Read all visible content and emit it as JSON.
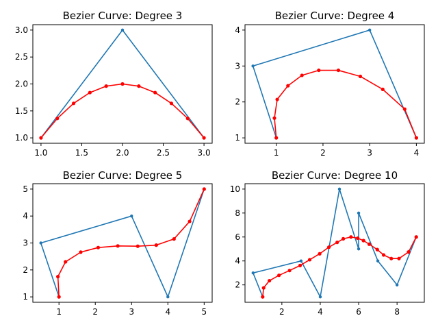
{
  "colors": {
    "control": "#1f77b4",
    "curve": "#ff0000"
  },
  "chart_data": [
    {
      "type": "line",
      "title": "Bezier Curve: Degree 3",
      "xlabel": "",
      "ylabel": "",
      "xlim": [
        0.9,
        3.1
      ],
      "ylim": [
        0.9,
        3.1
      ],
      "xticks": [
        1.0,
        1.5,
        2.0,
        2.5,
        3.0
      ],
      "xticklabels": [
        "1.0",
        "1.5",
        "2.0",
        "2.5",
        "3.0"
      ],
      "yticks": [
        1.0,
        1.5,
        2.0,
        2.5,
        3.0
      ],
      "yticklabels": [
        "1.0",
        "1.5",
        "2.0",
        "2.5",
        "3.0"
      ],
      "grid": false,
      "series": [
        {
          "role": "control",
          "color": "#1f77b4",
          "x": [
            1,
            2,
            3
          ],
          "y": [
            1,
            3,
            1
          ]
        },
        {
          "role": "curve",
          "color": "#ff0000",
          "x": [
            1.0,
            1.2,
            1.4,
            1.6,
            1.8,
            2.0,
            2.2,
            2.4,
            2.6,
            2.8,
            3.0
          ],
          "y": [
            1.0,
            1.36,
            1.64,
            1.84,
            1.96,
            2.0,
            1.96,
            1.84,
            1.64,
            1.36,
            1.0
          ]
        }
      ]
    },
    {
      "type": "line",
      "title": "Bezier Curve: Degree 4",
      "xlabel": "",
      "ylabel": "",
      "xlim": [
        0.33,
        4.17
      ],
      "ylim": [
        0.85,
        4.15
      ],
      "xticks": [
        1,
        2,
        3,
        4
      ],
      "xticklabels": [
        "1",
        "2",
        "3",
        "4"
      ],
      "yticks": [
        1,
        2,
        3,
        4
      ],
      "yticklabels": [
        "1",
        "2",
        "3",
        "4"
      ],
      "grid": false,
      "series": [
        {
          "role": "control",
          "color": "#1f77b4",
          "x": [
            1,
            0.5,
            3,
            4
          ],
          "y": [
            1,
            3,
            4,
            1
          ]
        },
        {
          "role": "curve",
          "color": "#ff0000",
          "x": [
            1.0,
            0.96,
            1.02,
            1.25,
            1.55,
            1.91,
            2.33,
            2.8,
            3.28,
            3.75,
            4.0
          ],
          "y": [
            1.0,
            1.55,
            2.07,
            2.45,
            2.74,
            2.88,
            2.88,
            2.71,
            2.35,
            1.8,
            1.0
          ]
        }
      ]
    },
    {
      "type": "line",
      "title": "Bezier Curve: Degree 5",
      "xlabel": "",
      "ylabel": "",
      "xlim": [
        0.28,
        5.22
      ],
      "ylim": [
        0.8,
        5.2
      ],
      "xticks": [
        1,
        2,
        3,
        4,
        5
      ],
      "xticklabels": [
        "1",
        "2",
        "3",
        "4",
        "5"
      ],
      "yticks": [
        1,
        2,
        3,
        4,
        5
      ],
      "yticklabels": [
        "1",
        "2",
        "3",
        "4",
        "5"
      ],
      "grid": false,
      "series": [
        {
          "role": "control",
          "color": "#1f77b4",
          "x": [
            1,
            0.5,
            3,
            4,
            5
          ],
          "y": [
            1,
            3,
            4,
            1,
            5
          ]
        },
        {
          "role": "curve",
          "color": "#ff0000",
          "x": [
            1.0,
            0.97,
            1.18,
            1.6,
            2.08,
            2.62,
            3.17,
            3.68,
            4.17,
            4.6,
            5.0
          ],
          "y": [
            1.0,
            1.75,
            2.3,
            2.66,
            2.83,
            2.89,
            2.88,
            2.92,
            3.15,
            3.8,
            5.0
          ]
        }
      ]
    },
    {
      "type": "line",
      "title": "Bezier Curve: Degree 10",
      "xlabel": "",
      "ylabel": "",
      "xlim": [
        0.08,
        9.42
      ],
      "ylim": [
        0.55,
        10.45
      ],
      "xticks": [
        2,
        4,
        6,
        8
      ],
      "xticklabels": [
        "2",
        "4",
        "6",
        "8"
      ],
      "yticks": [
        2,
        4,
        6,
        8,
        10
      ],
      "yticklabels": [
        "2",
        "4",
        "6",
        "8",
        "10"
      ],
      "grid": false,
      "series": [
        {
          "role": "control",
          "color": "#1f77b4",
          "x": [
            1,
            0.5,
            3,
            4,
            5,
            6,
            6,
            7,
            8,
            9
          ],
          "y": [
            1,
            3,
            4,
            1,
            10,
            5,
            8,
            4,
            2,
            6
          ]
        },
        {
          "role": "curve",
          "color": "#ff0000",
          "x": [
            1.0,
            1.05,
            1.35,
            1.85,
            2.4,
            2.95,
            3.45,
            3.97,
            4.45,
            4.88,
            5.2,
            5.6,
            5.95,
            6.25,
            6.55,
            6.97,
            7.3,
            7.7,
            8.1,
            8.6,
            9.0
          ],
          "y": [
            1.0,
            1.75,
            2.35,
            2.8,
            3.2,
            3.62,
            4.1,
            4.6,
            5.15,
            5.55,
            5.85,
            6.0,
            5.9,
            5.7,
            5.4,
            4.95,
            4.5,
            4.2,
            4.2,
            4.75,
            6.0
          ]
        }
      ]
    }
  ]
}
